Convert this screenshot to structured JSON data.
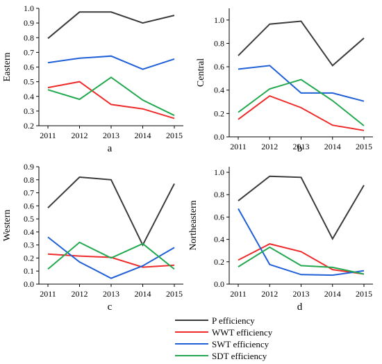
{
  "chart_data": [
    {
      "type": "line",
      "panel_label": "a",
      "ylabel": "Eastern",
      "categories": [
        "2011",
        "2012",
        "2013",
        "2014",
        "2015"
      ],
      "ylim": [
        0.2,
        1.0
      ],
      "yticks": [
        "0.2",
        "0.3",
        "0.4",
        "0.5",
        "0.6",
        "0.7",
        "0.8",
        "0.9",
        "1.0"
      ],
      "series": [
        {
          "name": "P  efficiency",
          "values": [
            0.795,
            0.975,
            0.975,
            0.9,
            0.952
          ]
        },
        {
          "name": "WWT efficiency",
          "values": [
            0.46,
            0.5,
            0.345,
            0.315,
            0.25
          ]
        },
        {
          "name": "SWT efficiency",
          "values": [
            0.63,
            0.66,
            0.675,
            0.585,
            0.655
          ]
        },
        {
          "name": "SDT efficiency",
          "values": [
            0.445,
            0.38,
            0.53,
            0.375,
            0.27
          ]
        }
      ]
    },
    {
      "type": "line",
      "panel_label": "b",
      "ylabel": "Central",
      "categories": [
        "2011",
        "2012",
        "2013",
        "2014",
        "2015"
      ],
      "ylim": [
        0.0,
        1.1
      ],
      "yticks": [
        "0.0",
        "0.2",
        "0.4",
        "0.6",
        "0.8",
        "1.0"
      ],
      "series": [
        {
          "name": "P  efficiency",
          "values": [
            0.695,
            0.965,
            0.99,
            0.61,
            0.845
          ]
        },
        {
          "name": "WWT efficiency",
          "values": [
            0.15,
            0.35,
            0.25,
            0.1,
            0.055
          ]
        },
        {
          "name": "SWT efficiency",
          "values": [
            0.58,
            0.61,
            0.375,
            0.375,
            0.305
          ]
        },
        {
          "name": "SDT efficiency",
          "values": [
            0.21,
            0.41,
            0.49,
            0.31,
            0.095
          ]
        }
      ]
    },
    {
      "type": "line",
      "panel_label": "c",
      "ylabel": "Western",
      "categories": [
        "2011",
        "2012",
        "2013",
        "2014",
        "2015"
      ],
      "ylim": [
        0.0,
        0.9
      ],
      "yticks": [
        "0.0",
        "0.1",
        "0.2",
        "0.3",
        "0.4",
        "0.5",
        "0.6",
        "0.7",
        "0.8",
        "0.9"
      ],
      "series": [
        {
          "name": "P  efficiency",
          "values": [
            0.585,
            0.82,
            0.8,
            0.3,
            0.77
          ]
        },
        {
          "name": "WWT efficiency",
          "values": [
            0.23,
            0.215,
            0.205,
            0.13,
            0.145
          ]
        },
        {
          "name": "SWT efficiency",
          "values": [
            0.36,
            0.17,
            0.045,
            0.14,
            0.28
          ]
        },
        {
          "name": "SDT efficiency",
          "values": [
            0.115,
            0.32,
            0.2,
            0.31,
            0.115
          ]
        }
      ]
    },
    {
      "type": "line",
      "panel_label": "d",
      "ylabel": "Northeastern",
      "categories": [
        "2011",
        "2012",
        "2013",
        "2014",
        "2015"
      ],
      "ylim": [
        0.0,
        1.05
      ],
      "yticks": [
        "0.0",
        "0.2",
        "0.4",
        "0.6",
        "0.8",
        "1.0"
      ],
      "series": [
        {
          "name": "P  efficiency",
          "values": [
            0.745,
            0.965,
            0.955,
            0.405,
            0.885
          ]
        },
        {
          "name": "WWT efficiency",
          "values": [
            0.215,
            0.36,
            0.29,
            0.13,
            0.09
          ]
        },
        {
          "name": "SWT efficiency",
          "values": [
            0.675,
            0.175,
            0.085,
            0.08,
            0.12
          ]
        },
        {
          "name": "SDT efficiency",
          "values": [
            0.155,
            0.33,
            0.165,
            0.15,
            0.09
          ]
        }
      ]
    }
  ],
  "legend": {
    "placement": "bottom-center",
    "items": [
      {
        "label": "P  efficiency",
        "color": "#3a3a3a"
      },
      {
        "label": "WWT efficiency",
        "color": "#ee2a2a"
      },
      {
        "label": "SWT efficiency",
        "color": "#1f5fd8"
      },
      {
        "label": "SDT efficiency",
        "color": "#22a84e"
      }
    ]
  },
  "colors": [
    "#3a3a3a",
    "#ee2a2a",
    "#1f5fd8",
    "#22a84e"
  ]
}
